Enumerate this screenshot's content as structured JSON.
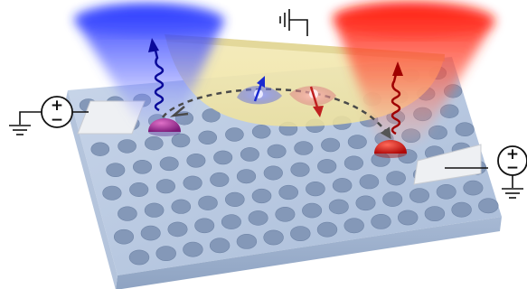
{
  "diagram": {
    "title": "",
    "components": [
      {
        "id": "left-voltage-source",
        "symbol_top": "+",
        "symbol_bottom": "−"
      },
      {
        "id": "right-voltage-source",
        "symbol_top": "+",
        "symbol_bottom": "−"
      },
      {
        "id": "top-ground"
      },
      {
        "id": "left-ground"
      },
      {
        "id": "right-ground"
      }
    ],
    "quantum_dots": [
      {
        "id": "left-dot",
        "color": "#9a2a8a",
        "emission_color": "#1b1fd0"
      },
      {
        "id": "right-dot",
        "color": "#d21414",
        "emission_color": "#c80000"
      }
    ],
    "electrons": [
      {
        "id": "electron-left",
        "spin": "up",
        "color": "#2a3fc8"
      },
      {
        "id": "electron-right",
        "spin": "down",
        "color": "#c83030"
      }
    ],
    "colors": {
      "slab_top": "#b6c7de",
      "slab_side": "#9fb3cf",
      "gate": "#f1e6a8",
      "left_cone": "#2c3cff",
      "right_cone": "#ff1a10",
      "tunnel_path": "#555555"
    }
  }
}
